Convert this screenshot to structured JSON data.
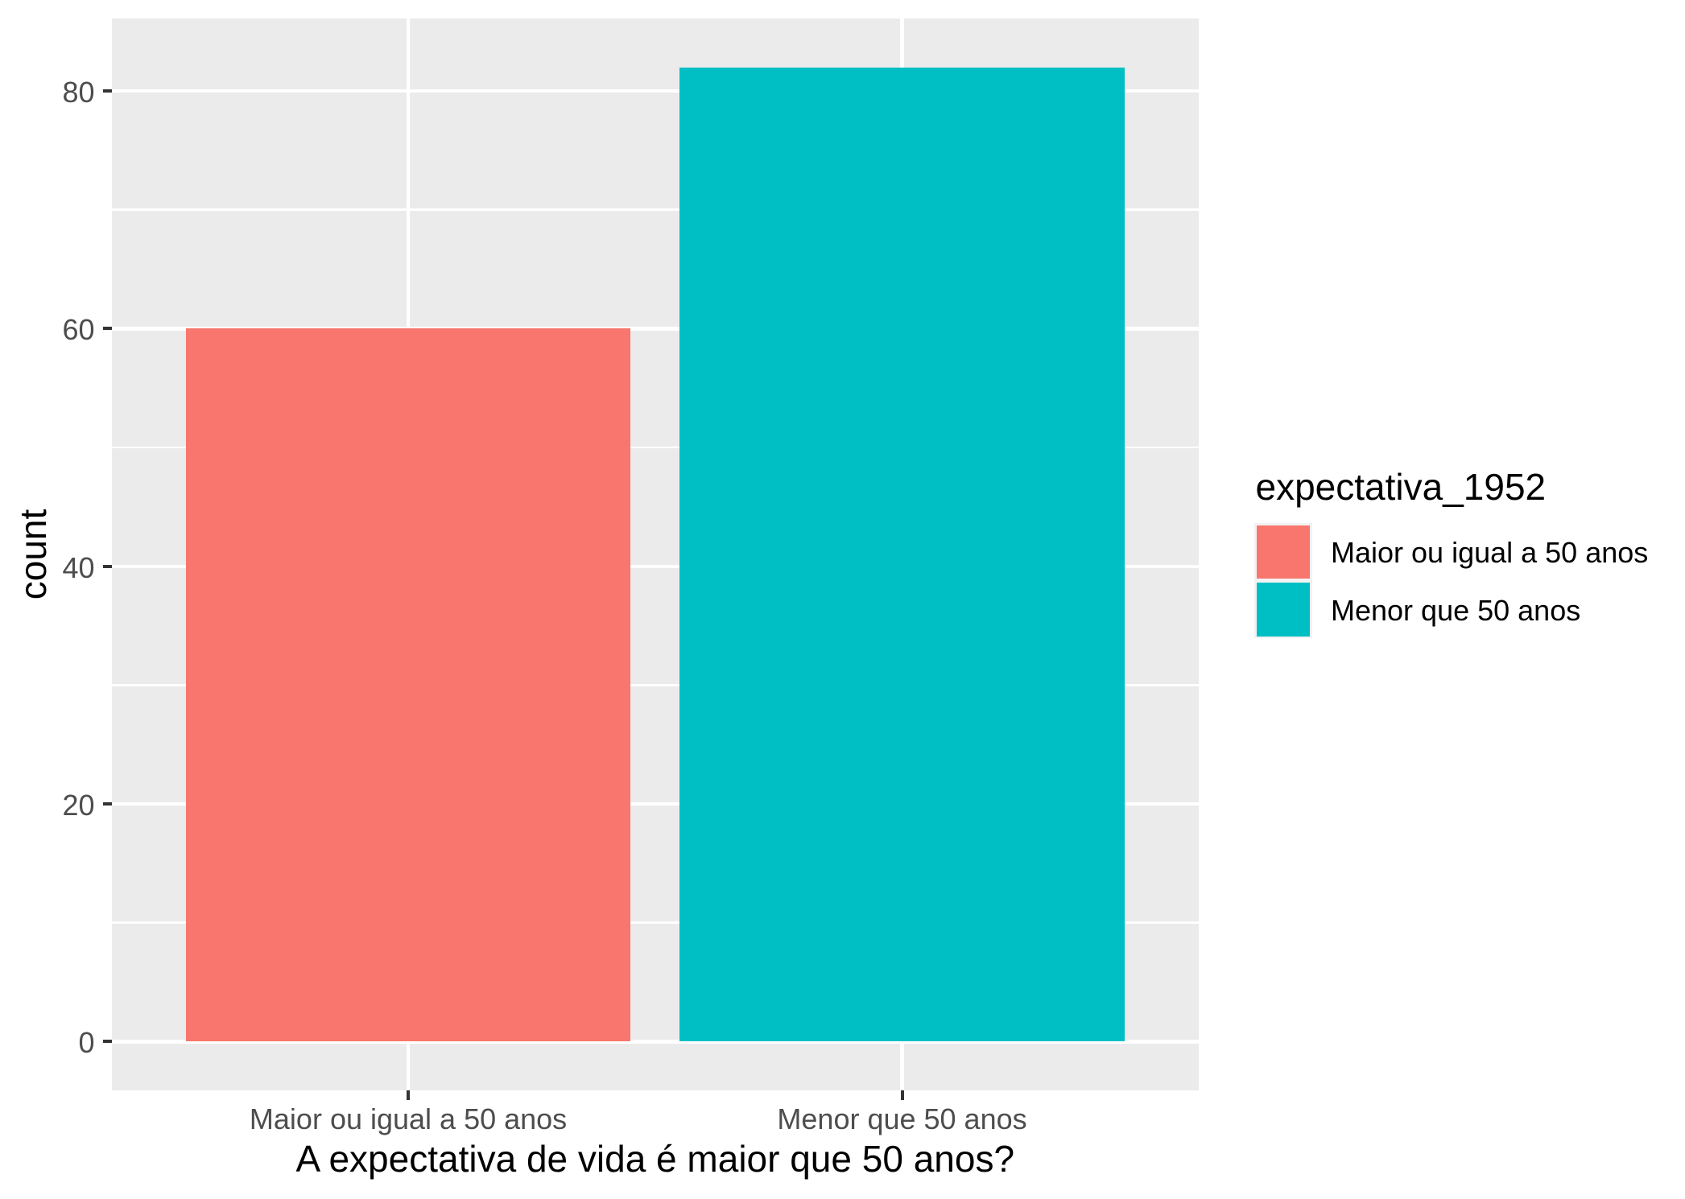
{
  "chart_data": {
    "type": "bar",
    "categories": [
      "Maior ou igual a 50 anos",
      "Menor que 50 anos"
    ],
    "values": [
      60,
      82
    ],
    "bar_colors": [
      "#F8766D",
      "#00BFC4"
    ],
    "title": "",
    "xlabel": "A expectativa de vida é maior que 50 anos?",
    "ylabel": "count",
    "y_major_ticks": [
      0,
      20,
      40,
      60,
      80
    ],
    "y_minor_ticks": [
      10,
      30,
      50,
      70
    ],
    "ylim": [
      0,
      82
    ],
    "grid": true,
    "legend_position": "right",
    "legend": {
      "title": "expectativa_1952",
      "entries": [
        {
          "label": "Maior ou igual a 50 anos",
          "color": "#F8766D"
        },
        {
          "label": "Menor que 50 anos",
          "color": "#00BFC4"
        }
      ]
    },
    "theme": {
      "background": "#FFFFFF",
      "panel_background": "#EBEBEB",
      "grid_color": "#FFFFFF",
      "axis_text_color": "#4D4D4D",
      "axis_title_color": "#000000",
      "legend_text_color": "#000000",
      "tick_color": "#333333",
      "legend_key_background": "#F2F2F2"
    }
  }
}
